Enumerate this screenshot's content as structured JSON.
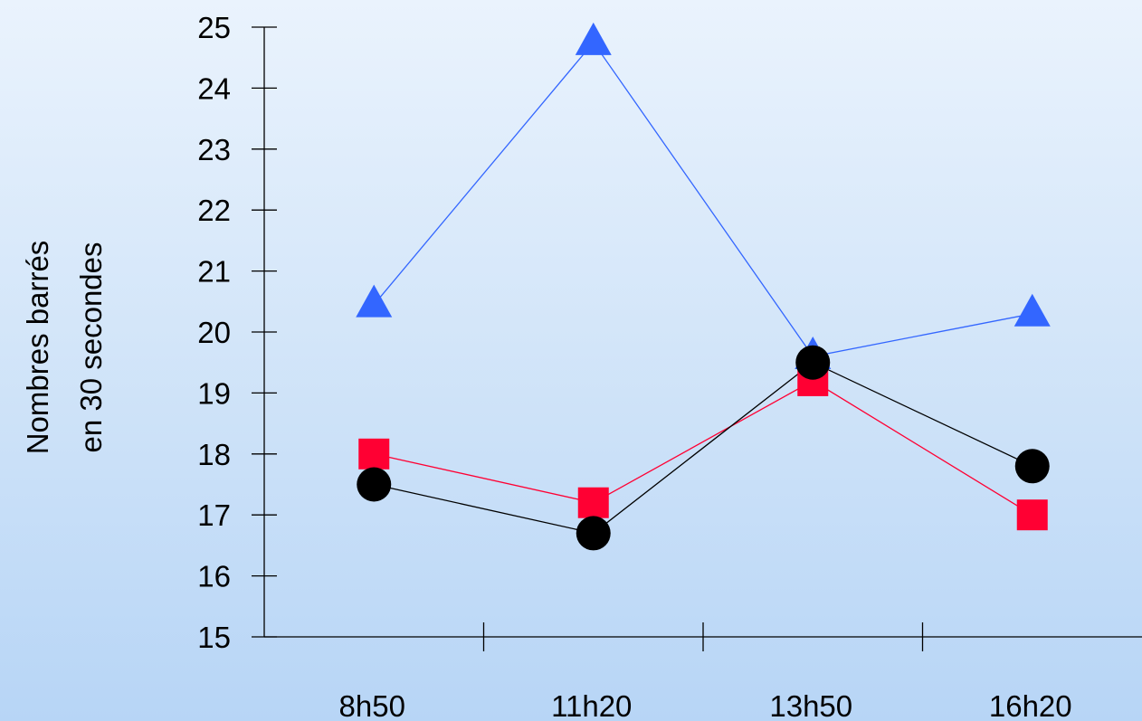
{
  "chart_data": {
    "type": "line",
    "title": "",
    "xlabel": "",
    "ylabel_lines": [
      "Nombres barrés",
      "en 30 secondes"
    ],
    "categories": [
      "8h50",
      "11h20",
      "13h50",
      "16h20"
    ],
    "yticks": [
      15,
      16,
      17,
      18,
      19,
      20,
      21,
      22,
      23,
      24,
      25
    ],
    "ylim": [
      15,
      25
    ],
    "grid": false,
    "legend": "none",
    "series": [
      {
        "marker": "triangle",
        "color": "#3366ff",
        "values": [
          20.45,
          24.75,
          19.6,
          20.3
        ]
      },
      {
        "marker": "square",
        "color": "#ff0033",
        "values": [
          18.0,
          17.2,
          19.2,
          17.0
        ]
      },
      {
        "marker": "circle",
        "color": "#000000",
        "values": [
          17.5,
          16.7,
          19.5,
          17.8
        ]
      }
    ]
  }
}
